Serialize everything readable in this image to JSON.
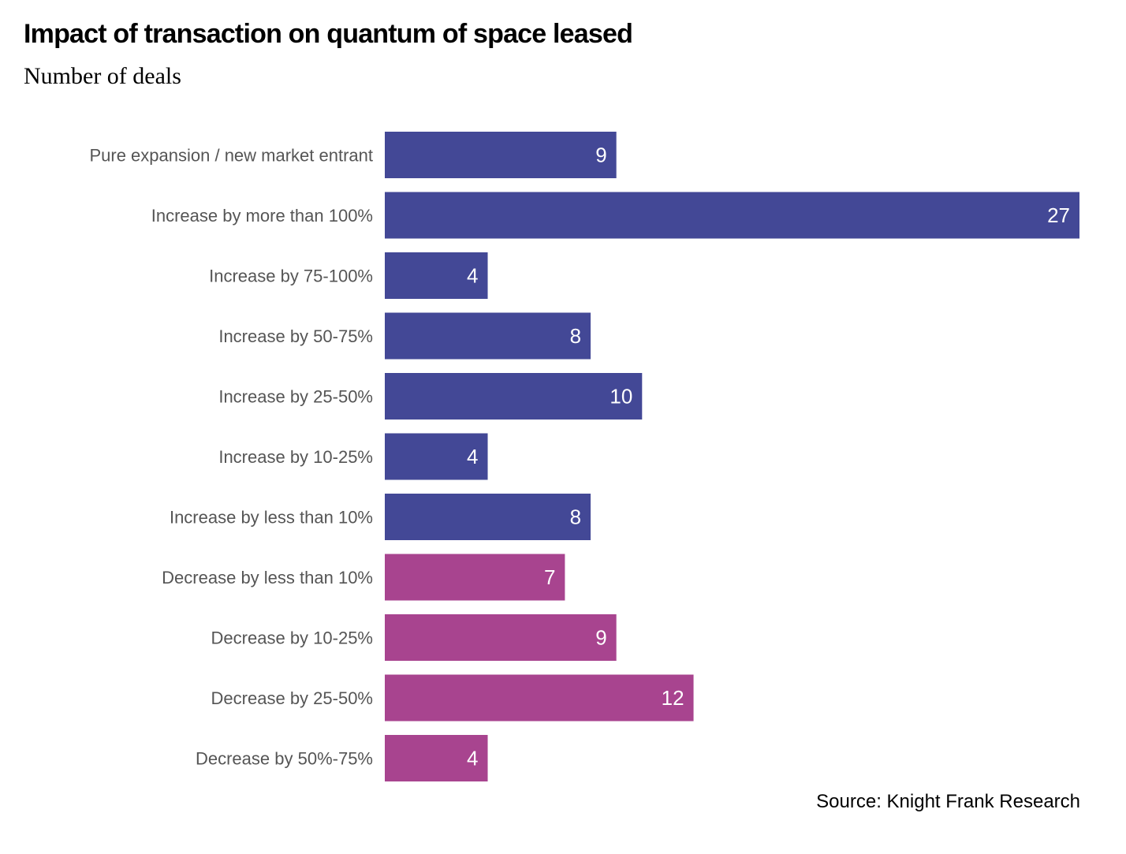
{
  "chart_data": {
    "type": "bar",
    "orientation": "horizontal",
    "title": "Impact of transaction on quantum of space leased",
    "subtitle": "Number of deals",
    "xlabel": "",
    "ylabel": "",
    "xlim": [
      0,
      27
    ],
    "grid": false,
    "categories": [
      "Pure expansion / new market entrant",
      "Increase by more than 100%",
      "Increase by 75-100%",
      "Increase by 50-75%",
      "Increase by 25-50%",
      "Increase by 10-25%",
      "Increase by less than 10%",
      "Decrease by less than 10%",
      "Decrease by 10-25%",
      "Decrease by 25-50%",
      "Decrease by 50%-75%"
    ],
    "values": [
      9,
      27,
      4,
      8,
      10,
      4,
      8,
      7,
      9,
      12,
      4
    ],
    "groups": [
      "increase",
      "increase",
      "increase",
      "increase",
      "increase",
      "increase",
      "increase",
      "decrease",
      "decrease",
      "decrease",
      "decrease"
    ],
    "colors": {
      "increase": "#434896",
      "decrease": "#A8448F"
    },
    "source": "Source: Knight Frank Research"
  }
}
